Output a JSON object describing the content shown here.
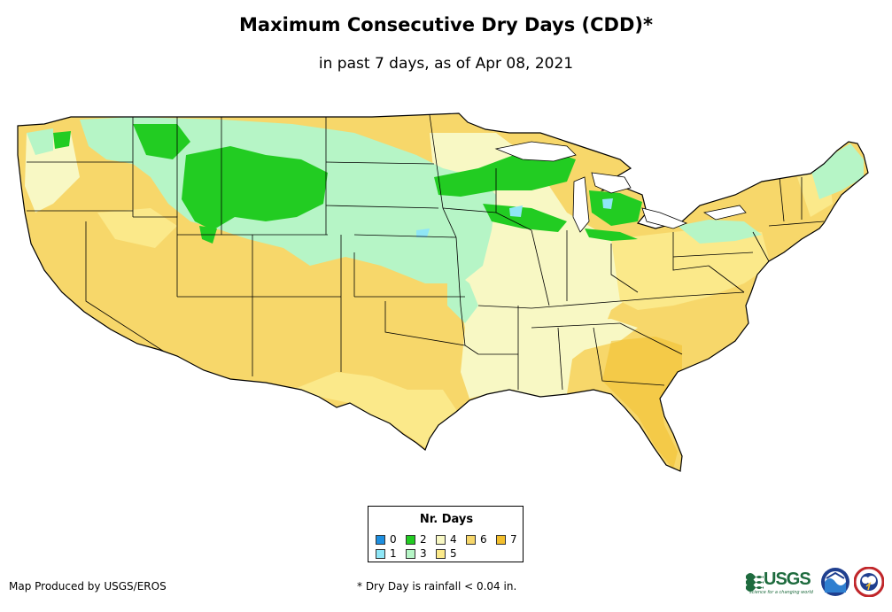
{
  "header": {
    "title": "Maximum Consecutive Dry Days (CDD)*",
    "subtitle": "in past 7 days, as of Apr 08, 2021"
  },
  "legend": {
    "title": "Nr. Days",
    "items": [
      {
        "label": "0",
        "color": "#1e8fe0"
      },
      {
        "label": "1",
        "color": "#8fe6f6"
      },
      {
        "label": "2",
        "color": "#22cc22"
      },
      {
        "label": "3",
        "color": "#b6f5c6"
      },
      {
        "label": "4",
        "color": "#f8f8c4"
      },
      {
        "label": "5",
        "color": "#fbe98a"
      },
      {
        "label": "6",
        "color": "#f7d76a"
      },
      {
        "label": "7",
        "color": "#f3bf2c"
      }
    ]
  },
  "footer": {
    "credit": "Map Produced by USGS/EROS",
    "footnote": "* Dry Day is rainfall < 0.04 in.",
    "usgs_logo": "USGS",
    "usgs_tagline": "science for a changing world"
  }
}
